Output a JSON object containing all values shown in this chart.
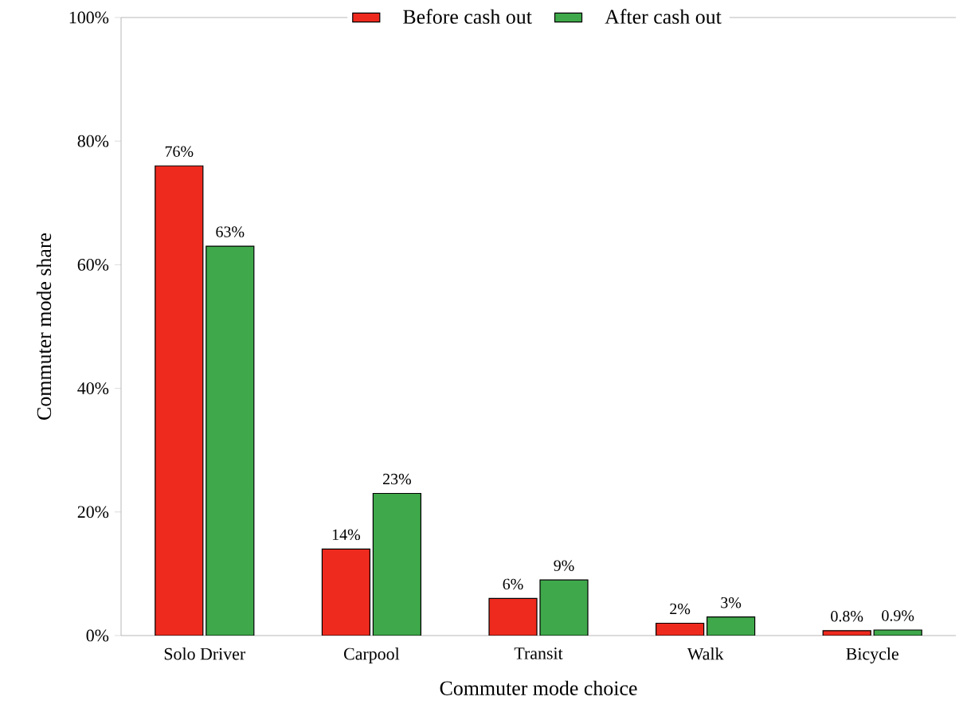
{
  "chart_data": {
    "type": "bar",
    "xlabel": "Commuter mode choice",
    "ylabel": "Commuter mode share",
    "categories": [
      "Solo Driver",
      "Carpool",
      "Transit",
      "Walk",
      "Bicycle"
    ],
    "series": [
      {
        "name": "Before cash out",
        "color": "#ee2a1e",
        "values": [
          76,
          14,
          6,
          2,
          0.8
        ],
        "value_labels": [
          "76%",
          "14%",
          "6%",
          "2%",
          "0.8%"
        ]
      },
      {
        "name": "After cash out",
        "color": "#3ea84a",
        "values": [
          63,
          23,
          9,
          3,
          0.9
        ],
        "value_labels": [
          "63%",
          "23%",
          "9%",
          "3%",
          "0.9%"
        ]
      }
    ],
    "ylim": [
      0,
      100
    ],
    "yticks": [
      {
        "value": 0,
        "label": "0%"
      },
      {
        "value": 20,
        "label": "20%"
      },
      {
        "value": 40,
        "label": "40%"
      },
      {
        "value": 60,
        "label": "60%"
      },
      {
        "value": 80,
        "label": "80%"
      },
      {
        "value": 100,
        "label": "100%"
      }
    ],
    "grid": false,
    "legend": "top"
  }
}
